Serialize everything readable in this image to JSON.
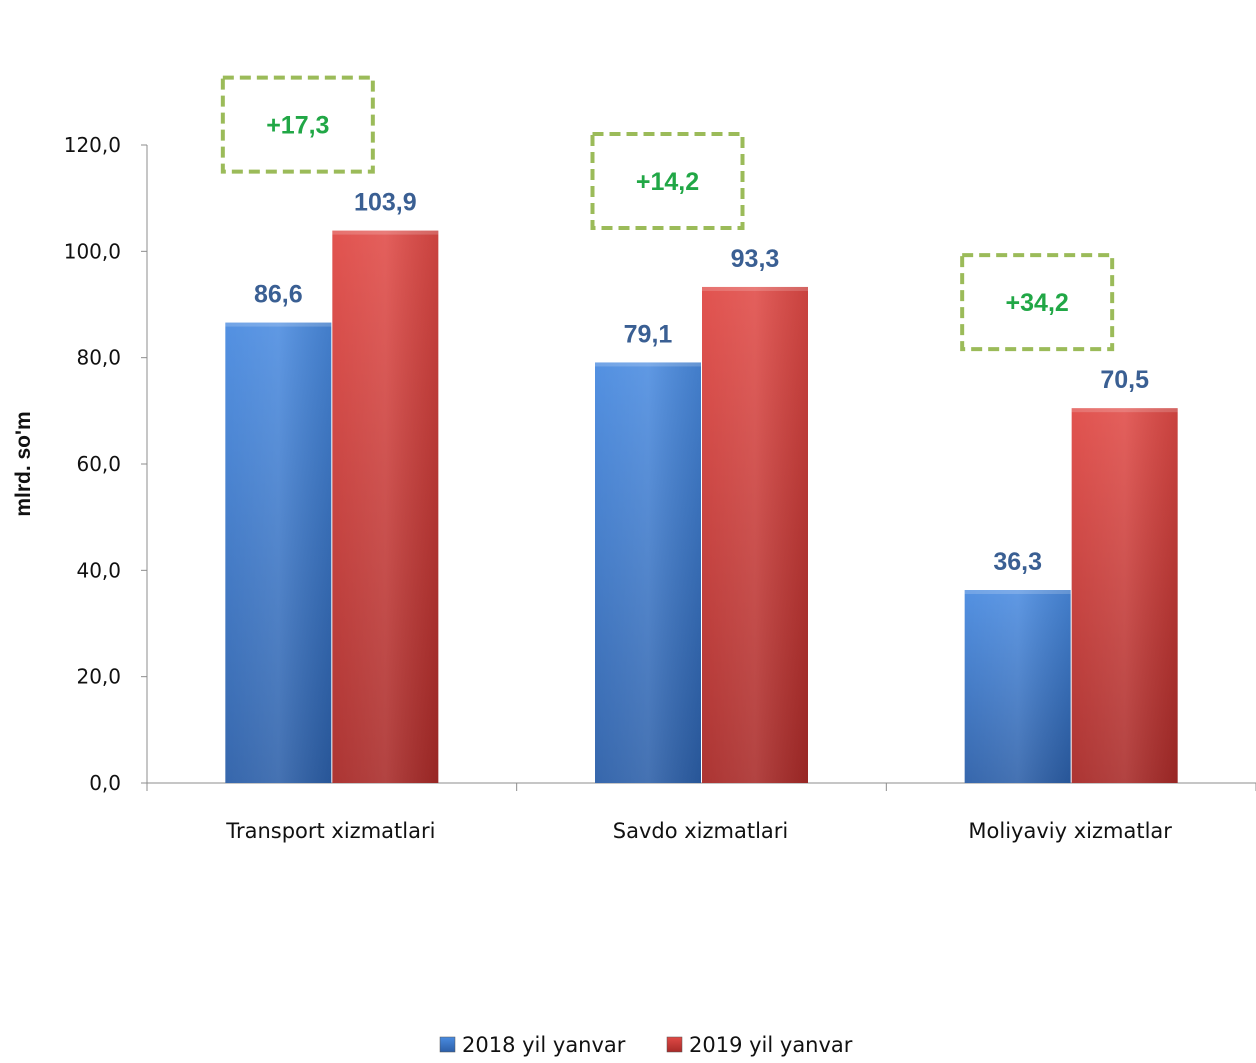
{
  "chart_data": {
    "type": "bar",
    "categories": [
      "Transport xizmatlari",
      "Savdo xizmatlari",
      "Moliyaviy xizmatlar"
    ],
    "series": [
      {
        "name": "2018 yil yanvar",
        "values": [
          86.6,
          79.1,
          36.3
        ],
        "labels": [
          "86,6",
          "79,1",
          "36,3"
        ],
        "color": "#3f7fd3"
      },
      {
        "name": "2019 yil yanvar",
        "values": [
          103.9,
          93.3,
          70.5
        ],
        "labels": [
          "103,9",
          "93,3",
          "70,5"
        ],
        "color": "#d6423f"
      }
    ],
    "annotations": [
      "+17,3",
      "+14,2",
      "+34,2"
    ],
    "ylabel": "mlrd. so'm",
    "ylim": [
      0,
      120
    ],
    "yticks": [
      0,
      20,
      40,
      60,
      80,
      100,
      120
    ],
    "ytick_labels": [
      "0,0",
      "20,0",
      "40,0",
      "60,0",
      "80,0",
      "100,0",
      "120,0"
    ],
    "legend_position": "bottom",
    "grid": false,
    "value_label_color": "#3a5f93",
    "annotation_color": "#21a746",
    "annotation_border_color": "#9bbb59"
  }
}
